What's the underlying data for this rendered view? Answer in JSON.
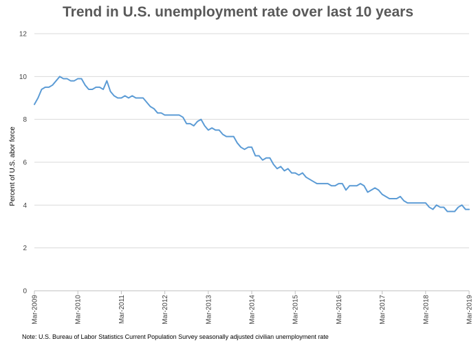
{
  "chart_data": {
    "type": "line",
    "title": "Trend in U.S. unemployment rate over last 10 years",
    "xlabel": "",
    "ylabel": "Percent of U.S. abor force",
    "ylim": [
      0,
      12
    ],
    "yticks": [
      "0",
      "2",
      "4",
      "6",
      "8",
      "10",
      "12"
    ],
    "xticks": [
      "Mar-2009",
      "Mar-2010",
      "Mar-2011",
      "Mar-2012",
      "Mar-2013",
      "Mar-2014",
      "Mar-2015",
      "Mar-2016",
      "Mar-2017",
      "Mar-2018",
      "Mar-2019"
    ],
    "grid": "horizontal",
    "note": "Note: U.S. Bureau of Labor Statistics Current Population Survey seasonally adjusted civilian unemployment rate",
    "line_color": "#5B9BD5",
    "series": [
      {
        "name": "Unemployment rate",
        "start": "Mar-2009",
        "frequency": "monthly",
        "values": [
          8.7,
          9.0,
          9.4,
          9.5,
          9.5,
          9.6,
          9.8,
          10.0,
          9.9,
          9.9,
          9.8,
          9.8,
          9.9,
          9.9,
          9.6,
          9.4,
          9.4,
          9.5,
          9.5,
          9.4,
          9.8,
          9.3,
          9.1,
          9.0,
          9.0,
          9.1,
          9.0,
          9.1,
          9.0,
          9.0,
          9.0,
          8.8,
          8.6,
          8.5,
          8.3,
          8.3,
          8.2,
          8.2,
          8.2,
          8.2,
          8.2,
          8.1,
          7.8,
          7.8,
          7.7,
          7.9,
          8.0,
          7.7,
          7.5,
          7.6,
          7.5,
          7.5,
          7.3,
          7.2,
          7.2,
          7.2,
          6.9,
          6.7,
          6.6,
          6.7,
          6.7,
          6.3,
          6.3,
          6.1,
          6.2,
          6.2,
          5.9,
          5.7,
          5.8,
          5.6,
          5.7,
          5.5,
          5.5,
          5.4,
          5.5,
          5.3,
          5.2,
          5.1,
          5.0,
          5.0,
          5.0,
          5.0,
          4.9,
          4.9,
          5.0,
          5.0,
          4.7,
          4.9,
          4.9,
          4.9,
          5.0,
          4.9,
          4.6,
          4.7,
          4.8,
          4.7,
          4.5,
          4.4,
          4.3,
          4.3,
          4.3,
          4.4,
          4.2,
          4.1,
          4.1,
          4.1,
          4.1,
          4.1,
          4.1,
          3.9,
          3.8,
          4.0,
          3.9,
          3.9,
          3.7,
          3.7,
          3.7,
          3.9,
          4.0,
          3.8,
          3.8
        ]
      }
    ]
  }
}
